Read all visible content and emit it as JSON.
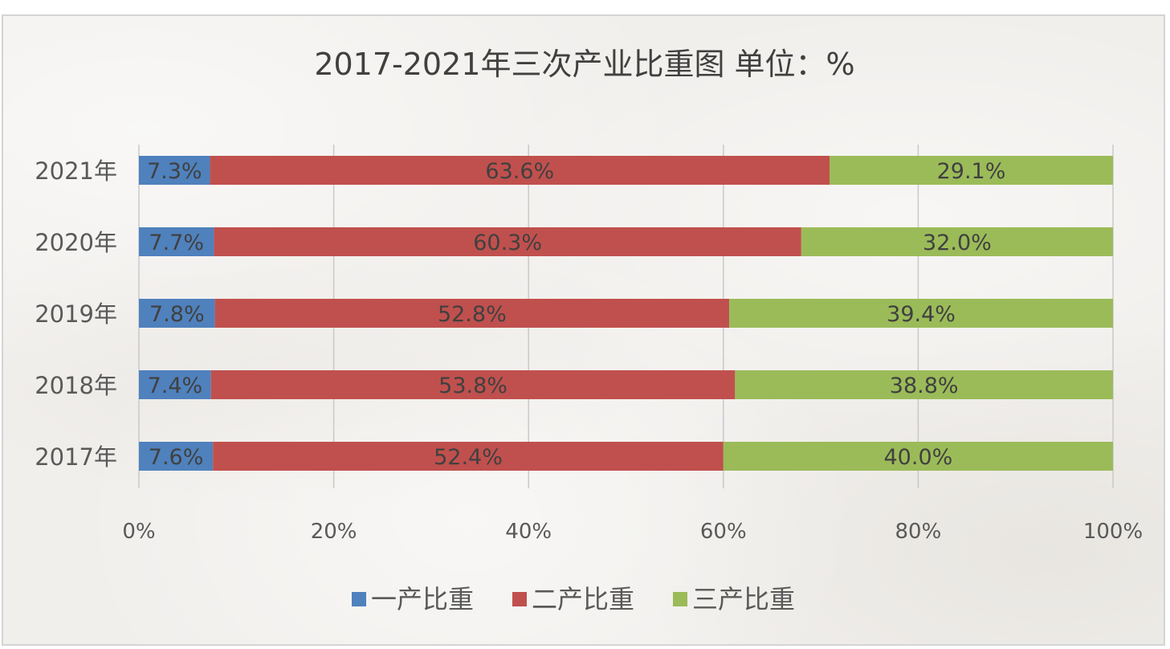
{
  "chart_data": {
    "type": "bar",
    "orientation": "horizontal",
    "stacked": "percent",
    "title": "2017-2021年三次产业比重图 单位：%",
    "categories": [
      "2021年",
      "2020年",
      "2019年",
      "2018年",
      "2017年"
    ],
    "series": [
      {
        "name": "一产比重",
        "color": "#4f81bd",
        "values": [
          7.3,
          7.7,
          7.8,
          7.4,
          7.6
        ],
        "labels": [
          "7.3%",
          "7.7%",
          "7.8%",
          "7.4%",
          "7.6%"
        ]
      },
      {
        "name": "二产比重",
        "color": "#c0504d",
        "values": [
          63.6,
          60.3,
          52.8,
          53.8,
          52.4
        ],
        "labels": [
          "63.6%",
          "60.3%",
          "52.8%",
          "53.8%",
          "52.4%"
        ]
      },
      {
        "name": "三产比重",
        "color": "#9bbb59",
        "values": [
          29.1,
          32.0,
          39.4,
          38.8,
          40.0
        ],
        "labels": [
          "29.1%",
          "32.0%",
          "39.4%",
          "38.8%",
          "40.0%"
        ]
      }
    ],
    "xaxis": {
      "range": [
        0,
        100
      ],
      "ticks": [
        0,
        20,
        40,
        60,
        80,
        100
      ],
      "tick_labels": [
        "0%",
        "20%",
        "40%",
        "60%",
        "80%",
        "100%"
      ]
    },
    "xlabel": "",
    "ylabel": "",
    "grid": "vertical",
    "legend_position": "bottom"
  }
}
